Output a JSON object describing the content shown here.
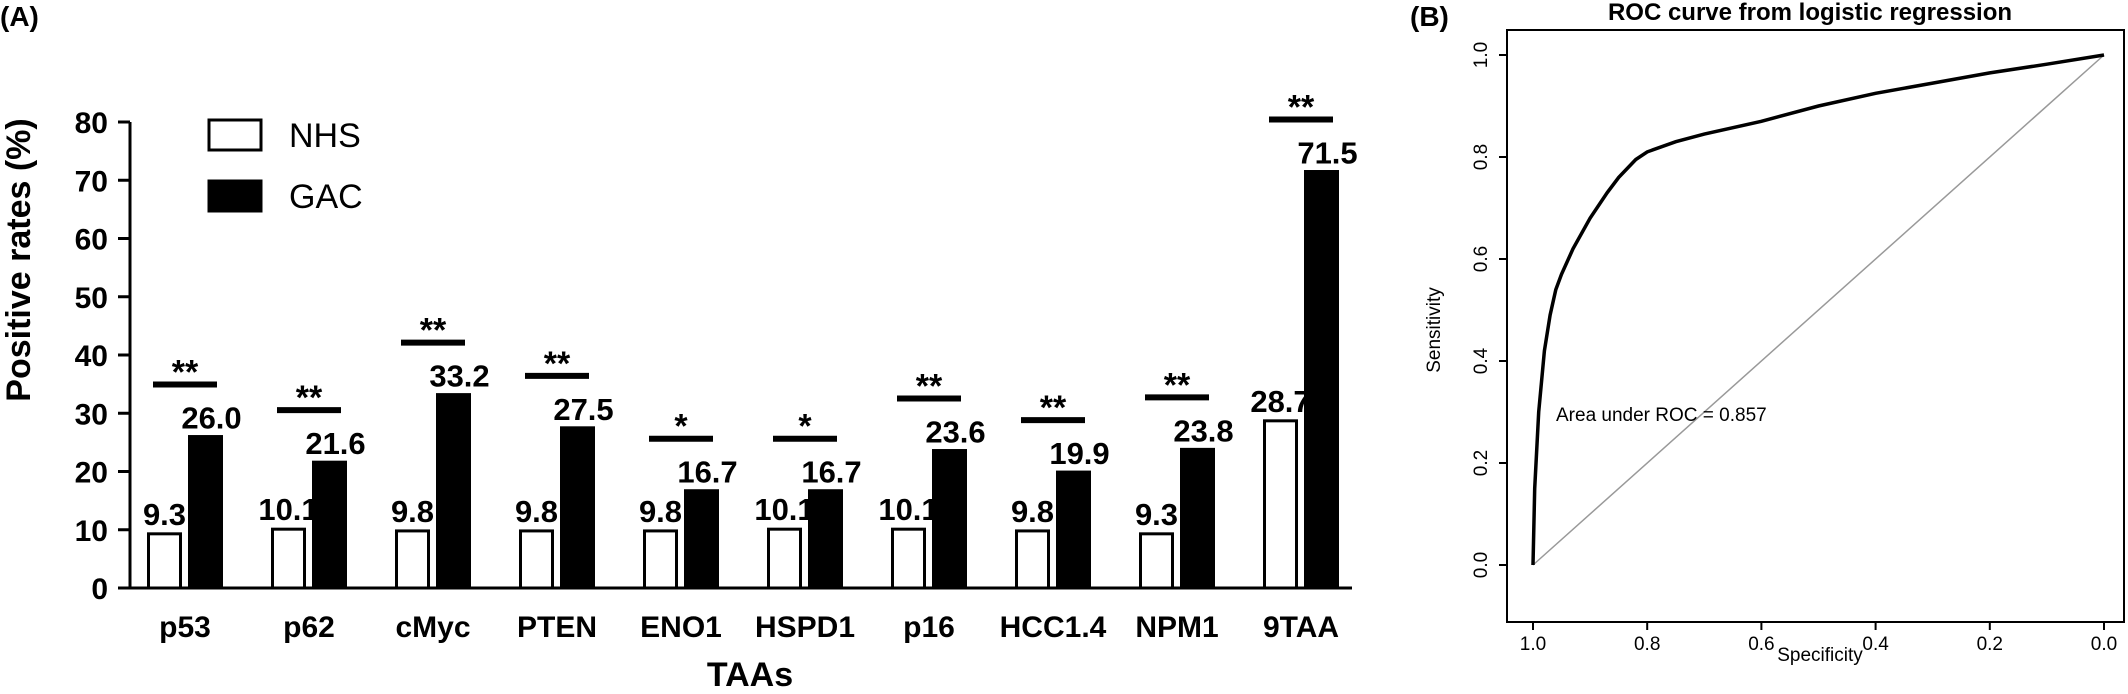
{
  "panel_a_label": "(A)",
  "panel_b_label": "(B)",
  "chart_data": [
    {
      "type": "bar",
      "title": "",
      "xlabel": "TAAs",
      "ylabel": "Positive rates (%)",
      "ylim": [
        0,
        80
      ],
      "yticks": [
        0,
        10,
        20,
        30,
        40,
        50,
        60,
        70,
        80
      ],
      "categories": [
        "p53",
        "p62",
        "cMyc",
        "PTEN",
        "ENO1",
        "HSPD1",
        "p16",
        "HCC1.4",
        "NPM1",
        "9TAA"
      ],
      "series": [
        {
          "name": "NHS",
          "values": [
            9.3,
            10.1,
            9.8,
            9.8,
            9.8,
            10.1,
            10.1,
            9.8,
            9.3,
            28.7
          ],
          "labels": [
            "9.3",
            "10.1",
            "9.8",
            "9.8",
            "9.8",
            "10.1",
            "10.1",
            "9.8",
            "9.3",
            "28.7"
          ],
          "color": "#ffffff"
        },
        {
          "name": "GAC",
          "values": [
            26.0,
            21.6,
            33.2,
            27.5,
            16.7,
            16.7,
            23.6,
            19.9,
            23.8,
            71.5
          ],
          "labels": [
            "26.0",
            "21.6",
            "33.2",
            "27.5",
            "16.7",
            "16.7",
            "23.6",
            "19.9",
            "23.8",
            "71.5"
          ],
          "color": "#000000"
        }
      ],
      "significance": [
        "**",
        "**",
        "**",
        "**",
        "*",
        "*",
        "**",
        "**",
        "**",
        "**"
      ],
      "legend_position": "top-left",
      "grid": false
    },
    {
      "type": "line",
      "title": "ROC curve from logistic regression",
      "xlabel": "Specificity",
      "ylabel": "Sensitivity",
      "xlim": [
        1.0,
        0.0
      ],
      "ylim": [
        0.0,
        1.0
      ],
      "xticks": [
        "1.0",
        "0.8",
        "0.6",
        "0.4",
        "0.2",
        "0.0"
      ],
      "yticks": [
        "0.0",
        "0.2",
        "0.4",
        "0.6",
        "0.8",
        "1.0"
      ],
      "annotation": "Area under ROC = 0.857",
      "series": [
        {
          "specificity": [
            1.0,
            0.997,
            0.99,
            0.98,
            0.97,
            0.96,
            0.95,
            0.93,
            0.9,
            0.87,
            0.85,
            0.82,
            0.8,
            0.75,
            0.7,
            0.6,
            0.5,
            0.4,
            0.3,
            0.2,
            0.1,
            0.0
          ],
          "sensitivity": [
            0.0,
            0.15,
            0.3,
            0.42,
            0.49,
            0.54,
            0.57,
            0.62,
            0.68,
            0.73,
            0.76,
            0.795,
            0.81,
            0.83,
            0.845,
            0.87,
            0.9,
            0.925,
            0.945,
            0.965,
            0.982,
            1.0
          ]
        }
      ],
      "reference_line": "diagonal",
      "grid": false
    }
  ]
}
